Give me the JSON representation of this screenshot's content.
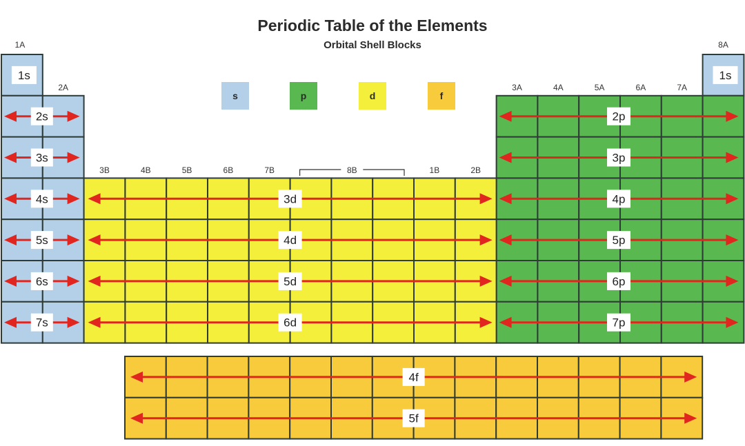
{
  "title": "Periodic Table of the Elements",
  "subtitle": "Orbital Shell Blocks",
  "legend": [
    {
      "key": "s",
      "label": "s",
      "color": "#b3d0e8"
    },
    {
      "key": "p",
      "label": "p",
      "color": "#59b84f"
    },
    {
      "key": "d",
      "label": "d",
      "color": "#f3ef3b"
    },
    {
      "key": "f",
      "label": "f",
      "color": "#f8cb3c"
    }
  ],
  "group_labels": {
    "g1": "1A",
    "g2": "2A",
    "g3": "3B",
    "g4": "4B",
    "g5": "5B",
    "g6": "6B",
    "g7": "7B",
    "g8_10": "8B",
    "g11": "1B",
    "g12": "2B",
    "g13": "3A",
    "g14": "4A",
    "g15": "5A",
    "g16": "6A",
    "g17": "7A",
    "g18": "8A"
  },
  "s_block": {
    "top_left": "1s",
    "top_right": "1s",
    "rows": [
      "2s",
      "3s",
      "4s",
      "5s",
      "6s",
      "7s"
    ]
  },
  "p_block": {
    "rows": [
      "2p",
      "3p",
      "4p",
      "5p",
      "6p",
      "7p"
    ]
  },
  "d_block": {
    "rows": [
      "3d",
      "4d",
      "5d",
      "6d"
    ]
  },
  "f_block": {
    "rows": [
      "4f",
      "5f"
    ]
  },
  "colors": {
    "s": "#b3d0e8",
    "p": "#59b84f",
    "d": "#f3ef3b",
    "f": "#f8cb3c",
    "grid": "#2e3b36",
    "arrow": "#e0261f"
  }
}
